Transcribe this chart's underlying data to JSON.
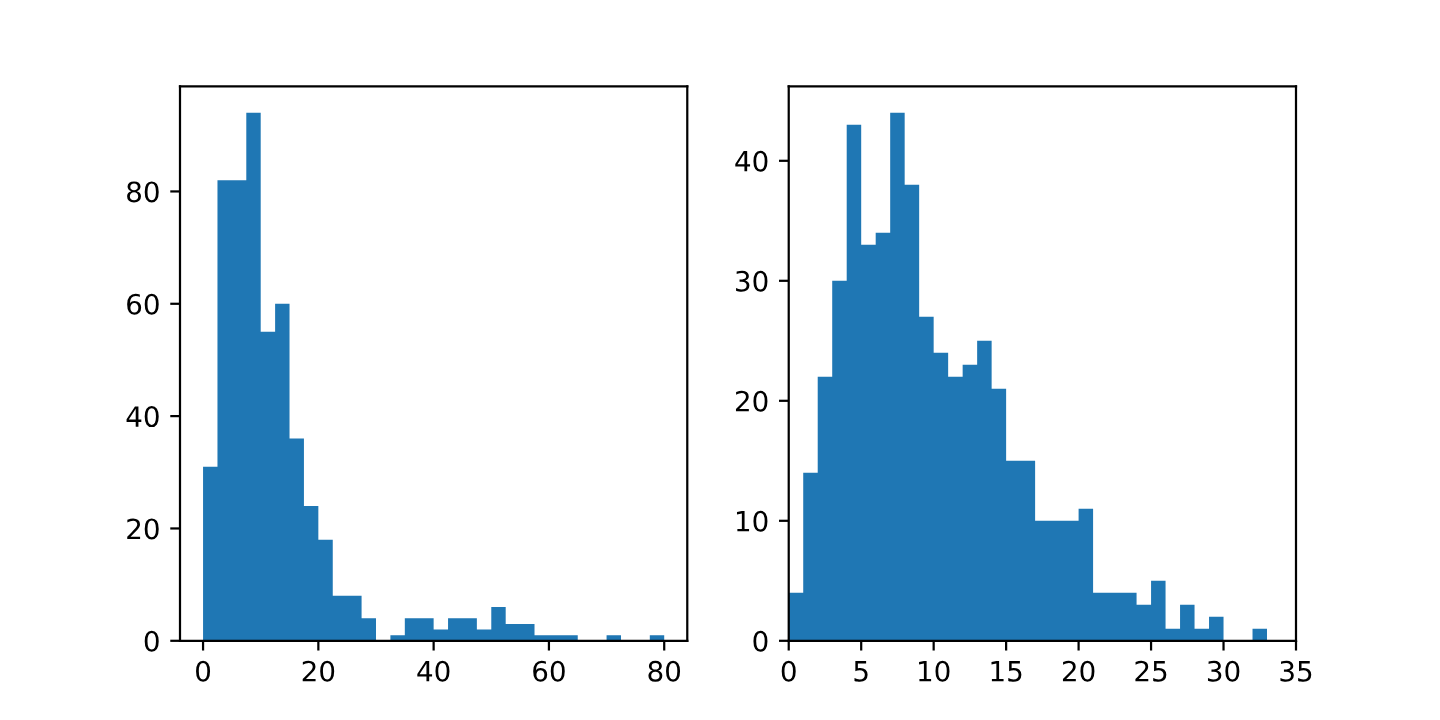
{
  "chart_data": [
    {
      "type": "histogram",
      "color": "#1f77b4",
      "bins": [
        0,
        2.5,
        5,
        7.5,
        10,
        12.5,
        15,
        17.5,
        20,
        22.5,
        25,
        27.5,
        30,
        32.5,
        35,
        37.5,
        40,
        42.5,
        45,
        47.5,
        50,
        52.5,
        55,
        57.5,
        60,
        62.5,
        65,
        67.5,
        70,
        72.5,
        75,
        77.5,
        80
      ],
      "values": [
        31,
        82,
        82,
        94,
        55,
        60,
        36,
        24,
        18,
        8,
        8,
        4,
        0,
        1,
        4,
        4,
        2,
        4,
        4,
        2,
        6,
        3,
        3,
        1,
        1,
        1,
        0,
        0,
        1,
        0,
        0,
        1
      ],
      "xlim": [
        -4,
        84
      ],
      "xticks": [
        0,
        20,
        40,
        60,
        80
      ],
      "ylim": [
        0,
        98.7
      ],
      "yticks": [
        0,
        20,
        40,
        60,
        80
      ],
      "grid": false
    },
    {
      "type": "histogram",
      "color": "#1f77b4",
      "bins": [
        0,
        1,
        2,
        3,
        4,
        5,
        6,
        7,
        8,
        9,
        10,
        11,
        12,
        13,
        14,
        15,
        16,
        17,
        18,
        19,
        20,
        21,
        22,
        23,
        24,
        25,
        26,
        27,
        28,
        29,
        30,
        31,
        32,
        33
      ],
      "values": [
        4,
        14,
        22,
        30,
        43,
        33,
        34,
        44,
        38,
        27,
        24,
        22,
        23,
        25,
        21,
        15,
        15,
        10,
        10,
        10,
        11,
        4,
        4,
        4,
        3,
        5,
        1,
        3,
        1,
        2,
        0,
        0,
        1
      ],
      "xlim": [
        0,
        35
      ],
      "xticks": [
        0,
        5,
        10,
        15,
        20,
        25,
        30,
        35
      ],
      "ylim": [
        0,
        46.2
      ],
      "yticks": [
        0,
        10,
        20,
        30,
        40
      ],
      "grid": false
    }
  ]
}
